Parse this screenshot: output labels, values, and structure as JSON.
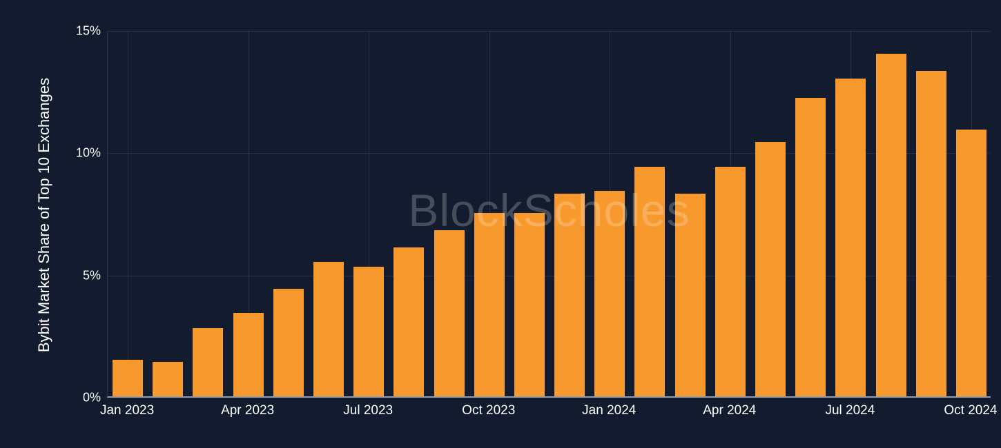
{
  "chart_data": {
    "type": "bar",
    "title": "",
    "xlabel": "",
    "ylabel": "Bybit Market Share of Top 10 Exchanges",
    "ylim": [
      0,
      15
    ],
    "grid": true,
    "legend": "none",
    "watermark": "BlockScholes",
    "bar_color": "#F8992D",
    "background_color": "#131B2E",
    "yticks": [
      {
        "value": 0,
        "label": "0%"
      },
      {
        "value": 5,
        "label": "5%"
      },
      {
        "value": 10,
        "label": "10%"
      },
      {
        "value": 15,
        "label": "15%"
      }
    ],
    "xticks": [
      "Jan 2023",
      "Apr 2023",
      "Jul 2023",
      "Oct 2023",
      "Jan 2024",
      "Apr 2024",
      "Jul 2024",
      "Oct 2024"
    ],
    "categories": [
      "Jan 2023",
      "Feb 2023",
      "Mar 2023",
      "Apr 2023",
      "May 2023",
      "Jun 2023",
      "Jul 2023",
      "Aug 2023",
      "Sep 2023",
      "Oct 2023",
      "Nov 2023",
      "Dec 2023",
      "Jan 2024",
      "Feb 2024",
      "Mar 2024",
      "Apr 2024",
      "May 2024",
      "Jun 2024",
      "Jul 2024",
      "Aug 2024",
      "Sep 2024",
      "Oct 2024"
    ],
    "values": [
      1.5,
      1.4,
      2.8,
      3.4,
      4.4,
      5.5,
      5.3,
      6.1,
      6.8,
      7.5,
      7.5,
      8.3,
      8.4,
      9.4,
      8.3,
      9.4,
      10.4,
      12.2,
      13.0,
      14.0,
      13.3,
      10.9
    ]
  }
}
